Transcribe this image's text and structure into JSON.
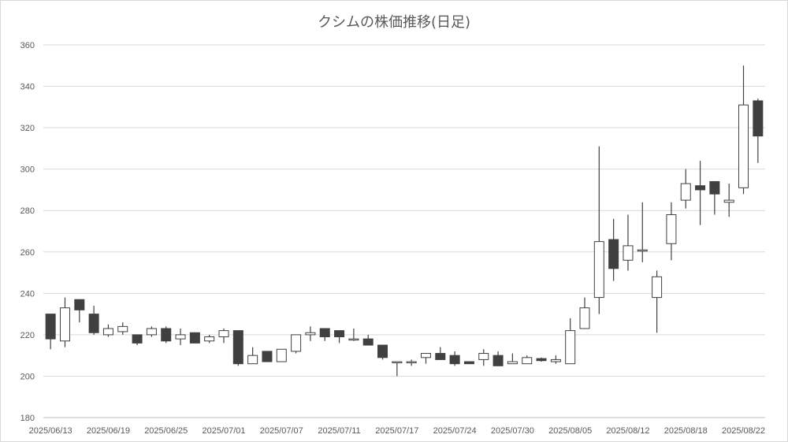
{
  "chart_data": {
    "type": "candlestick",
    "title": "クシムの株価推移(日足)",
    "xlabel": "",
    "ylabel": "",
    "ylim": [
      180,
      360
    ],
    "y_ticks": [
      180,
      200,
      220,
      240,
      260,
      280,
      300,
      320,
      340,
      360
    ],
    "grid": true,
    "legend": "none",
    "x_tick_labels": [
      {
        "index": 0,
        "label": "2025/06/13"
      },
      {
        "index": 4,
        "label": "2025/06/19"
      },
      {
        "index": 8,
        "label": "2025/06/25"
      },
      {
        "index": 12,
        "label": "2025/07/01"
      },
      {
        "index": 16,
        "label": "2025/07/07"
      },
      {
        "index": 20,
        "label": "2025/07/11"
      },
      {
        "index": 24,
        "label": "2025/07/17"
      },
      {
        "index": 28,
        "label": "2025/07/24"
      },
      {
        "index": 32,
        "label": "2025/07/30"
      },
      {
        "index": 36,
        "label": "2025/08/05"
      },
      {
        "index": 40,
        "label": "2025/08/12"
      },
      {
        "index": 44,
        "label": "2025/08/18"
      },
      {
        "index": 48,
        "label": "2025/08/22"
      }
    ],
    "ohlc": [
      [
        230,
        230,
        213,
        218
      ],
      [
        217,
        238,
        214,
        233
      ],
      [
        237,
        237,
        226,
        232
      ],
      [
        230,
        234,
        220,
        221
      ],
      [
        220,
        225,
        219,
        223
      ],
      [
        221.5,
        226,
        220,
        224
      ],
      [
        220,
        220,
        215,
        216
      ],
      [
        220,
        224,
        219,
        223
      ],
      [
        223,
        224,
        216,
        217
      ],
      [
        218,
        223,
        215,
        220
      ],
      [
        221,
        221,
        216,
        216
      ],
      [
        217,
        220,
        216,
        219
      ],
      [
        219,
        223,
        216,
        222
      ],
      [
        222,
        222,
        205,
        206
      ],
      [
        206,
        214,
        206,
        210
      ],
      [
        212,
        212,
        207,
        207
      ],
      [
        207,
        213,
        207,
        213
      ],
      [
        212,
        220,
        211,
        220
      ],
      [
        220,
        224,
        217,
        221
      ],
      [
        223,
        223,
        217,
        219
      ],
      [
        222,
        222,
        216,
        219
      ],
      [
        218,
        223,
        217,
        218
      ],
      [
        218,
        220,
        215,
        215
      ],
      [
        215,
        215,
        208,
        209
      ],
      [
        207,
        207,
        200,
        207
      ],
      [
        207,
        208,
        205,
        207
      ],
      [
        209,
        211,
        206,
        211
      ],
      [
        211,
        214,
        208,
        208
      ],
      [
        210,
        212,
        205,
        206
      ],
      [
        207,
        207,
        206,
        206
      ],
      [
        208,
        213,
        205,
        211
      ],
      [
        210,
        212,
        205,
        205
      ],
      [
        206,
        211,
        206,
        207
      ],
      [
        206,
        210,
        206,
        209
      ],
      [
        208.5,
        209,
        207,
        207.5
      ],
      [
        207,
        210,
        206,
        208
      ],
      [
        206,
        228,
        206,
        222
      ],
      [
        223,
        238,
        223,
        233
      ],
      [
        238,
        311,
        230,
        265
      ],
      [
        266,
        276,
        246,
        252
      ],
      [
        256,
        278,
        251,
        263
      ],
      [
        261,
        284,
        255,
        261
      ],
      [
        238,
        251,
        221,
        248
      ],
      [
        264,
        284,
        256,
        278
      ],
      [
        285,
        300,
        281,
        293
      ],
      [
        292,
        304,
        273,
        290
      ],
      [
        294,
        294,
        278,
        288
      ],
      [
        284,
        293,
        277,
        285
      ],
      [
        291,
        350,
        288,
        331
      ],
      [
        333,
        334,
        303,
        316
      ]
    ],
    "colors": {
      "up_fill": "#ffffff",
      "down_fill": "#404040",
      "stroke": "#404040",
      "grid": "#d9d9d9"
    }
  }
}
